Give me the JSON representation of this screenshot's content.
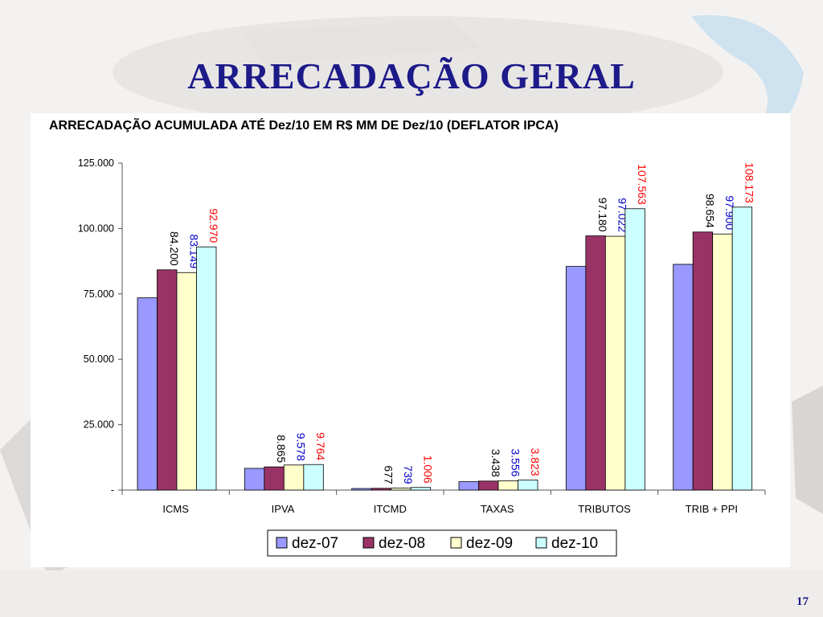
{
  "slide": {
    "title": "ARRECADAÇÃO  GERAL",
    "page_number": "17"
  },
  "colors": {
    "dez-07": "#9999ff",
    "dez-08": "#993366",
    "dez-09": "#ffffcc",
    "dez-10": "#ccffff",
    "label-dez-08": "#000000",
    "label-dez-09": "#0000cc",
    "label-dez-10": "#ff0000",
    "title": "#1d1a8a"
  },
  "chart_data": {
    "type": "bar",
    "title": "ARRECADAÇÃO ACUMULADA ATÉ Dez/10 EM R$ MM DE Dez/10 (DEFLATOR IPCA)",
    "categories": [
      "ICMS",
      "IPVA",
      "ITCMD",
      "TAXAS",
      "TRIBUTOS",
      "TRIB + PPI"
    ],
    "series": [
      {
        "name": "dez-07",
        "values": [
          73500,
          8300,
          600,
          3200,
          85500,
          86300
        ],
        "labels": [
          "",
          "",
          "",
          "",
          "",
          ""
        ]
      },
      {
        "name": "dez-08",
        "values": [
          84200,
          8865,
          677,
          3438,
          97180,
          98654
        ],
        "labels": [
          "84.200",
          "8.865",
          "677",
          "3.438",
          "97.180",
          "98.654"
        ]
      },
      {
        "name": "dez-09",
        "values": [
          83149,
          9578,
          739,
          3556,
          97022,
          97900
        ],
        "labels": [
          "83.149",
          "9.578",
          "739",
          "3.556",
          "97.022",
          "97.900"
        ]
      },
      {
        "name": "dez-10",
        "values": [
          92970,
          9764,
          1006,
          3823,
          107563,
          108173
        ],
        "labels": [
          "92.970",
          "9.764",
          "1.006",
          "3.823",
          "107.563",
          "108.173"
        ]
      }
    ],
    "yticks": [
      "-",
      "25.000",
      "50.000",
      "75.000",
      "100.000",
      "125.000"
    ],
    "ylim": [
      0,
      125000
    ],
    "xlabel": "",
    "ylabel": "",
    "grid": false,
    "legend": "bottom-center"
  }
}
